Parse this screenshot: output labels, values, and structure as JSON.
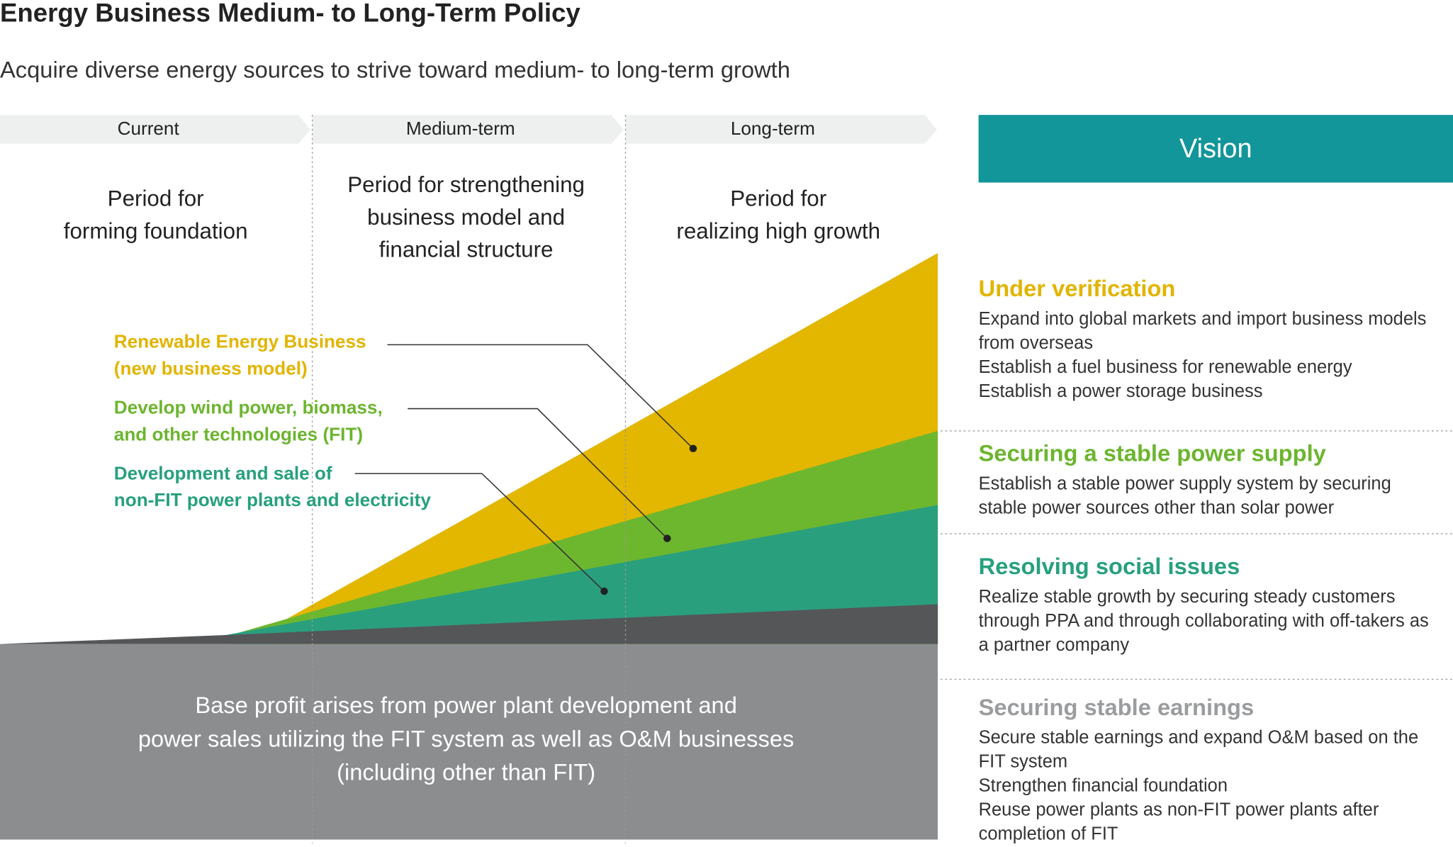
{
  "header": {
    "title": "Energy Business Medium- to Long-Term Policy",
    "subtitle": "Acquire diverse energy sources to strive toward medium- to long-term growth"
  },
  "phases": [
    {
      "label": "Current",
      "description": [
        "Period for",
        "forming foundation"
      ]
    },
    {
      "label": "Medium-term",
      "description": [
        "Period for strengthening",
        "business model and",
        "financial structure"
      ]
    },
    {
      "label": "Long-term",
      "description": [
        "Period for",
        "realizing high growth"
      ]
    }
  ],
  "layers": [
    {
      "label": [
        "Renewable Energy Business",
        "(new business model)"
      ]
    },
    {
      "label": [
        "Develop wind power, biomass,",
        "and other technologies (FIT)"
      ]
    },
    {
      "label": [
        "Development and sale of",
        "non-FIT power plants and electricity"
      ]
    }
  ],
  "base": {
    "text": [
      "Base profit arises from power plant development and",
      "power sales utilizing the FIT system as well as O&M businesses",
      "(including other than FIT)"
    ]
  },
  "vision": {
    "title": "Vision",
    "sections": [
      {
        "heading": "Under verification",
        "lines": [
          "Expand into global markets and import business models",
          "from overseas",
          "Establish a fuel business for renewable energy",
          "Establish a power storage business"
        ]
      },
      {
        "heading": "Securing a stable power supply",
        "lines": [
          "Establish a stable power supply system by securing",
          "stable power sources other than solar power"
        ]
      },
      {
        "heading": "Resolving social issues",
        "lines": [
          "Realize stable growth by securing steady customers",
          "through PPA and through collaborating with off-takers as",
          "a partner company"
        ]
      },
      {
        "heading": "Securing stable earnings",
        "lines": [
          "Secure stable earnings and expand O&M based on the",
          "FIT system",
          "Strengthen financial foundation",
          "Reuse power plants as non-FIT power plants after",
          "completion of FIT"
        ]
      }
    ]
  }
}
